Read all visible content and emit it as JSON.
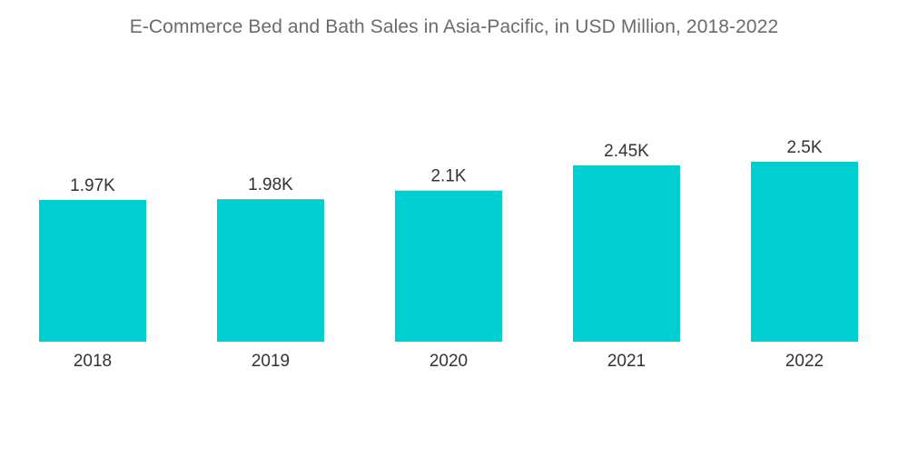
{
  "chart_data": {
    "type": "bar",
    "title": "E-Commerce Bed and Bath Sales in Asia-Pacific, in USD Million, 2018-2022",
    "categories": [
      "2018",
      "2019",
      "2020",
      "2021",
      "2022"
    ],
    "values": [
      1970,
      1980,
      2100,
      2450,
      2500
    ],
    "data_labels": [
      "1.97K",
      "1.98K",
      "2.1K",
      "2.45K",
      "2.5K"
    ],
    "xlabel": "",
    "ylabel": "",
    "ylim": [
      0,
      2500
    ],
    "grid": false,
    "legend": "none",
    "bar_color": "#00CED1"
  }
}
